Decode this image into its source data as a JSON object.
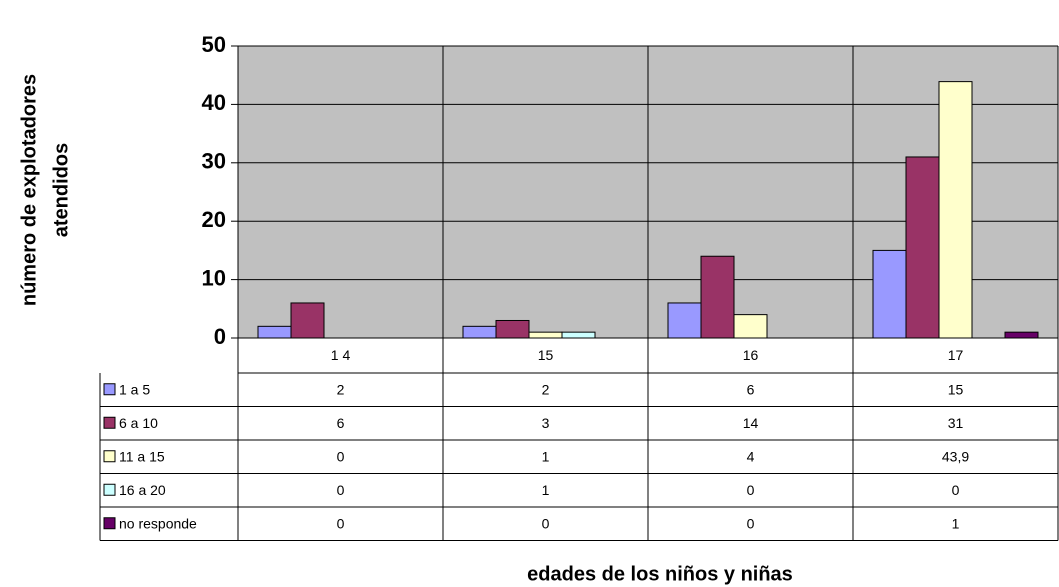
{
  "chart_data": {
    "type": "bar",
    "ylabel": [
      "número de explotadores",
      "atendidos"
    ],
    "xlabel": "edades de los niños y niñas",
    "categories": [
      "1 4",
      "15",
      "16",
      "17"
    ],
    "series": [
      {
        "name": "1 a 5",
        "color": "#9999ff",
        "values": [
          2,
          2,
          6,
          15
        ]
      },
      {
        "name": "6 a 10",
        "color": "#993366",
        "values": [
          6,
          3,
          14,
          31
        ]
      },
      {
        "name": "11 a 15",
        "color": "#ffffcc",
        "values": [
          0,
          1,
          4,
          43.9
        ],
        "value_labels": [
          "0",
          "1",
          "4",
          "43,9"
        ]
      },
      {
        "name": "16 a 20",
        "color": "#ccffff",
        "values": [
          0,
          1,
          0,
          0
        ]
      },
      {
        "name": "no responde",
        "color": "#660066",
        "values": [
          0,
          0,
          0,
          1
        ]
      }
    ],
    "ylim": [
      0,
      50
    ],
    "yticks": [
      0,
      10,
      20,
      30,
      40,
      50
    ],
    "grid": true,
    "background": "#c0c0c0"
  }
}
